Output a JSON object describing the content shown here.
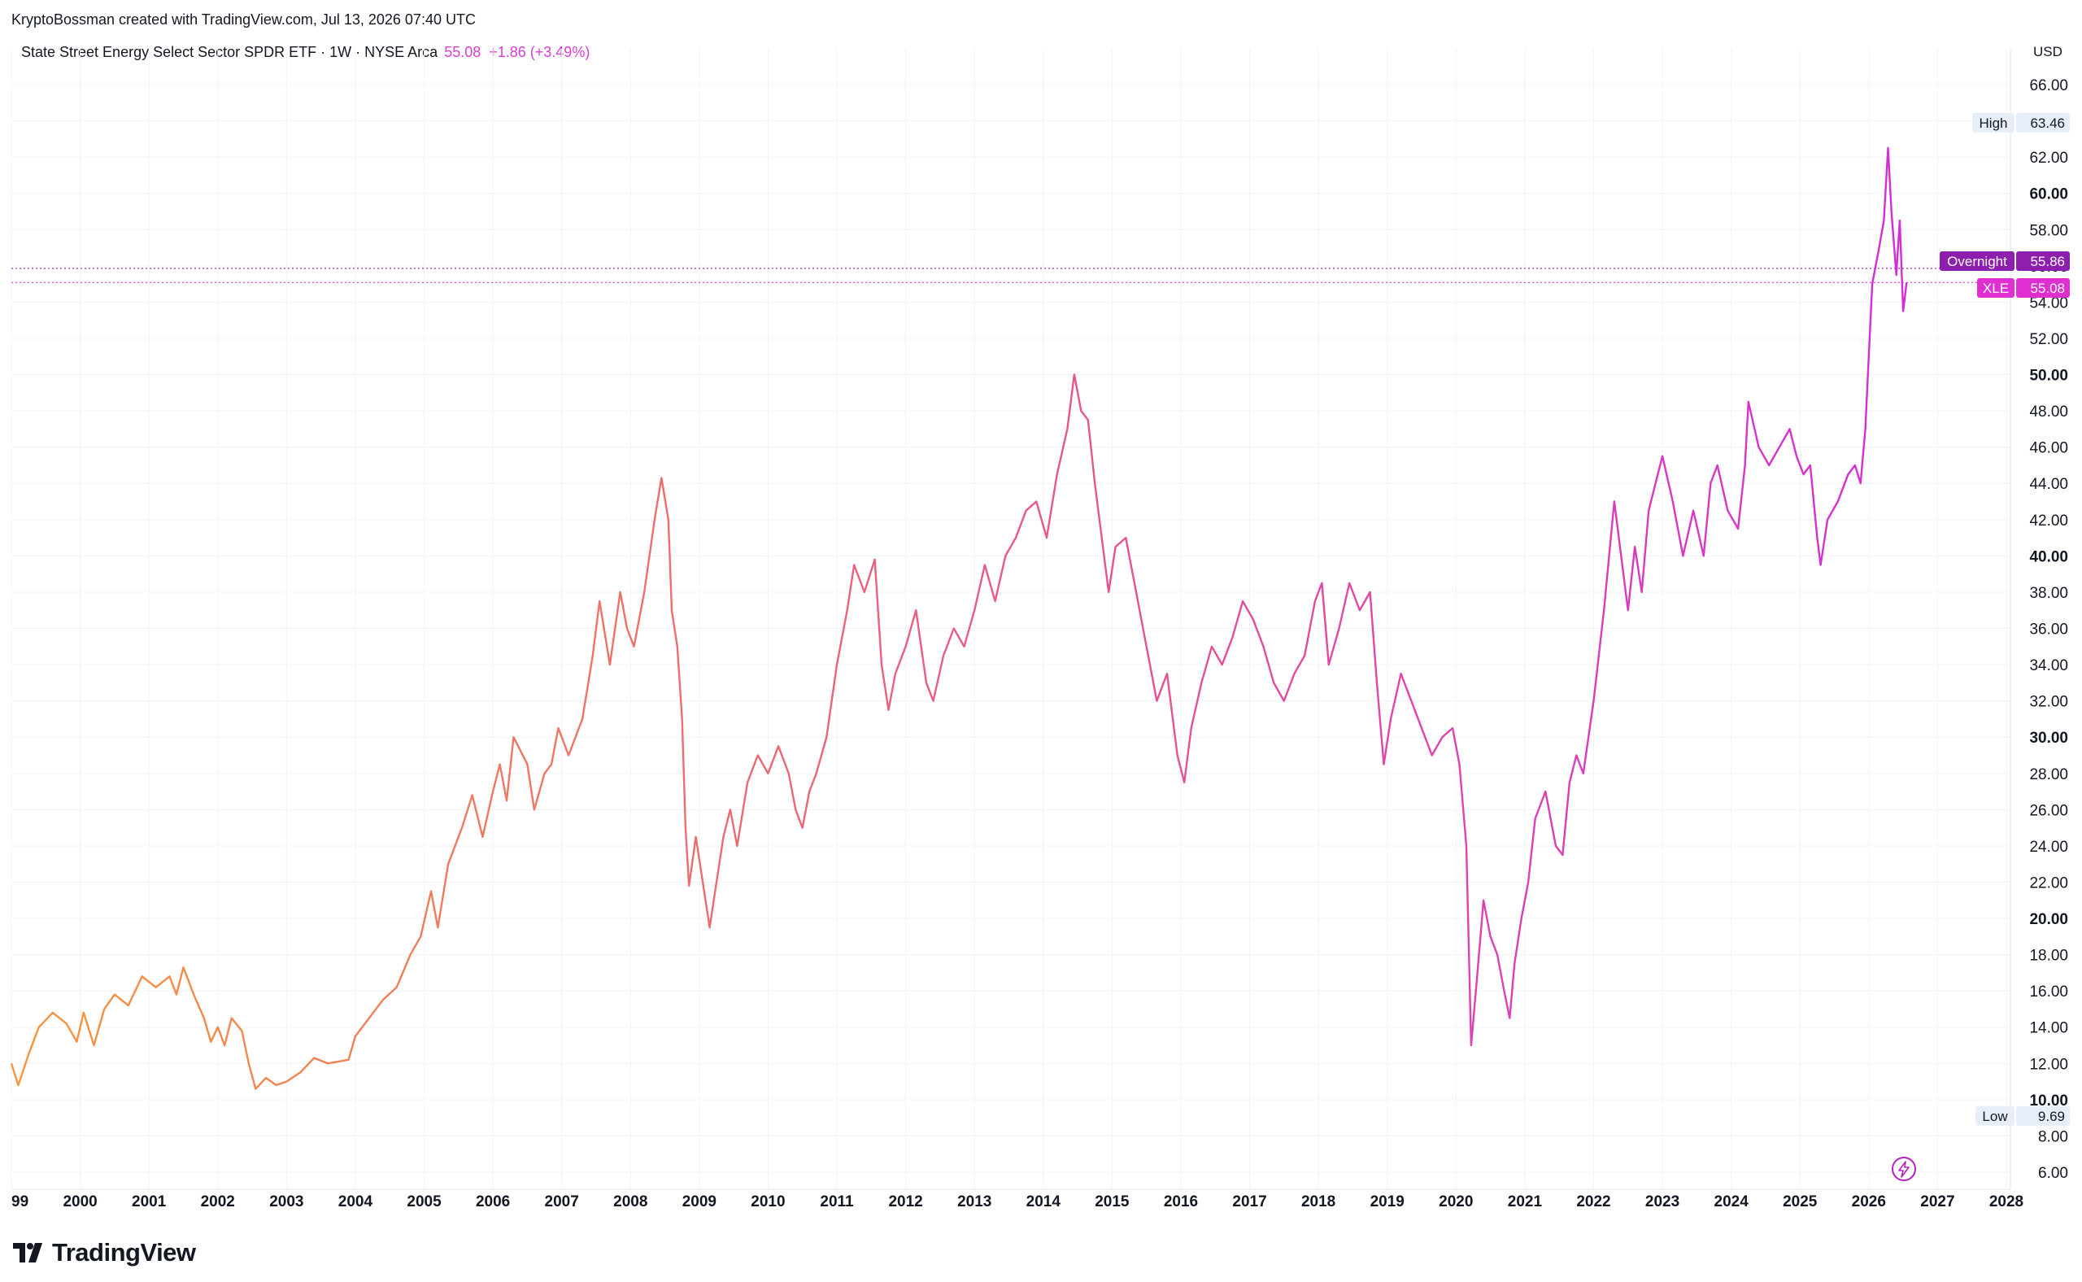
{
  "header": {
    "credit": "KryptoBossman created with TradingView.com, Jul 13, 2026 07:40 UTC",
    "symbol_line": "State Street Energy Select Sector SPDR ETF · 1W · NYSE Arca",
    "last_value": "55.08",
    "change": "+1.86 (+3.49%)",
    "currency": "USD"
  },
  "branding": {
    "logo_text": "TradingView"
  },
  "colors": {
    "line_start": "#f7953b",
    "line_mid": "#e8568a",
    "line_end": "#d62bd8",
    "overnight_tag": "#8e1fae",
    "price_tag": "#e02fd0",
    "hi_lo_tag": "#e7eef8",
    "grid": "#f0f3fa"
  },
  "chart_data": {
    "type": "line",
    "title": "State Street Energy Select Sector SPDR ETF · 1W · NYSE Arca",
    "xlabel": "",
    "ylabel": "",
    "x_range": [
      1999.0,
      2028.0
    ],
    "y_range": [
      5.0,
      67.0
    ],
    "y_ticks": [
      "66.00",
      "64.00",
      "62.00",
      "60.00",
      "58.00",
      "56.00",
      "54.00",
      "52.00",
      "50.00",
      "48.00",
      "46.00",
      "44.00",
      "42.00",
      "40.00",
      "38.00",
      "36.00",
      "34.00",
      "32.00",
      "30.00",
      "28.00",
      "26.00",
      "24.00",
      "22.00",
      "20.00",
      "18.00",
      "16.00",
      "14.00",
      "12.00",
      "10.00",
      "8.00",
      "6.00"
    ],
    "y_ticks_bold": [
      "60.00",
      "50.00",
      "40.00",
      "30.00",
      "20.00",
      "10.00"
    ],
    "x_ticks": [
      "99",
      "2000",
      "2001",
      "2002",
      "2003",
      "2004",
      "2005",
      "2006",
      "2007",
      "2008",
      "2009",
      "2010",
      "2011",
      "2012",
      "2013",
      "2014",
      "2015",
      "2016",
      "2017",
      "2018",
      "2019",
      "2020",
      "2021",
      "2022",
      "2023",
      "2024",
      "2025",
      "2026",
      "2027",
      "2028"
    ],
    "grid": true,
    "series": [
      {
        "name": "XLE",
        "points": [
          [
            1999.0,
            12.0
          ],
          [
            1999.1,
            10.8
          ],
          [
            1999.25,
            12.5
          ],
          [
            1999.4,
            14.0
          ],
          [
            1999.6,
            14.8
          ],
          [
            1999.8,
            14.2
          ],
          [
            1999.95,
            13.2
          ],
          [
            2000.05,
            14.8
          ],
          [
            2000.2,
            13.0
          ],
          [
            2000.35,
            15.0
          ],
          [
            2000.5,
            15.8
          ],
          [
            2000.7,
            15.2
          ],
          [
            2000.9,
            16.8
          ],
          [
            2001.1,
            16.2
          ],
          [
            2001.3,
            16.8
          ],
          [
            2001.4,
            15.8
          ],
          [
            2001.5,
            17.3
          ],
          [
            2001.65,
            15.8
          ],
          [
            2001.8,
            14.5
          ],
          [
            2001.9,
            13.2
          ],
          [
            2002.0,
            14.0
          ],
          [
            2002.1,
            13.0
          ],
          [
            2002.2,
            14.5
          ],
          [
            2002.35,
            13.8
          ],
          [
            2002.45,
            12.0
          ],
          [
            2002.55,
            10.6
          ],
          [
            2002.7,
            11.2
          ],
          [
            2002.85,
            10.8
          ],
          [
            2003.0,
            11.0
          ],
          [
            2003.2,
            11.5
          ],
          [
            2003.4,
            12.3
          ],
          [
            2003.6,
            12.0
          ],
          [
            2003.9,
            12.2
          ],
          [
            2004.0,
            13.5
          ],
          [
            2004.2,
            14.5
          ],
          [
            2004.4,
            15.5
          ],
          [
            2004.6,
            16.2
          ],
          [
            2004.8,
            18.0
          ],
          [
            2004.95,
            19.0
          ],
          [
            2005.1,
            21.5
          ],
          [
            2005.2,
            19.5
          ],
          [
            2005.35,
            23.0
          ],
          [
            2005.55,
            25.0
          ],
          [
            2005.7,
            26.8
          ],
          [
            2005.85,
            24.5
          ],
          [
            2006.0,
            27.0
          ],
          [
            2006.1,
            28.5
          ],
          [
            2006.2,
            26.5
          ],
          [
            2006.3,
            30.0
          ],
          [
            2006.5,
            28.5
          ],
          [
            2006.6,
            26.0
          ],
          [
            2006.75,
            28.0
          ],
          [
            2006.85,
            28.5
          ],
          [
            2006.95,
            30.5
          ],
          [
            2007.1,
            29.0
          ],
          [
            2007.3,
            31.0
          ],
          [
            2007.45,
            34.5
          ],
          [
            2007.55,
            37.5
          ],
          [
            2007.7,
            34.0
          ],
          [
            2007.85,
            38.0
          ],
          [
            2007.95,
            36.0
          ],
          [
            2008.05,
            35.0
          ],
          [
            2008.2,
            38.0
          ],
          [
            2008.35,
            42.0
          ],
          [
            2008.45,
            44.3
          ],
          [
            2008.55,
            42.0
          ],
          [
            2008.6,
            37.0
          ],
          [
            2008.68,
            35.0
          ],
          [
            2008.75,
            31.0
          ],
          [
            2008.8,
            25.0
          ],
          [
            2008.85,
            21.8
          ],
          [
            2008.95,
            24.5
          ],
          [
            2009.05,
            22.0
          ],
          [
            2009.15,
            19.5
          ],
          [
            2009.25,
            22.0
          ],
          [
            2009.35,
            24.5
          ],
          [
            2009.45,
            26.0
          ],
          [
            2009.55,
            24.0
          ],
          [
            2009.7,
            27.5
          ],
          [
            2009.85,
            29.0
          ],
          [
            2010.0,
            28.0
          ],
          [
            2010.15,
            29.5
          ],
          [
            2010.3,
            28.0
          ],
          [
            2010.4,
            26.0
          ],
          [
            2010.5,
            25.0
          ],
          [
            2010.6,
            27.0
          ],
          [
            2010.7,
            28.0
          ],
          [
            2010.85,
            30.0
          ],
          [
            2011.0,
            34.0
          ],
          [
            2011.15,
            37.0
          ],
          [
            2011.25,
            39.5
          ],
          [
            2011.4,
            38.0
          ],
          [
            2011.55,
            39.8
          ],
          [
            2011.65,
            34.0
          ],
          [
            2011.75,
            31.5
          ],
          [
            2011.85,
            33.5
          ],
          [
            2012.0,
            35.0
          ],
          [
            2012.15,
            37.0
          ],
          [
            2012.3,
            33.0
          ],
          [
            2012.4,
            32.0
          ],
          [
            2012.55,
            34.5
          ],
          [
            2012.7,
            36.0
          ],
          [
            2012.85,
            35.0
          ],
          [
            2013.0,
            37.0
          ],
          [
            2013.15,
            39.5
          ],
          [
            2013.3,
            37.5
          ],
          [
            2013.45,
            40.0
          ],
          [
            2013.6,
            41.0
          ],
          [
            2013.75,
            42.5
          ],
          [
            2013.9,
            43.0
          ],
          [
            2014.05,
            41.0
          ],
          [
            2014.2,
            44.5
          ],
          [
            2014.35,
            47.0
          ],
          [
            2014.45,
            50.0
          ],
          [
            2014.55,
            48.0
          ],
          [
            2014.65,
            47.5
          ],
          [
            2014.75,
            44.0
          ],
          [
            2014.85,
            41.0
          ],
          [
            2014.95,
            38.0
          ],
          [
            2015.05,
            40.5
          ],
          [
            2015.2,
            41.0
          ],
          [
            2015.35,
            38.0
          ],
          [
            2015.5,
            35.0
          ],
          [
            2015.65,
            32.0
          ],
          [
            2015.8,
            33.5
          ],
          [
            2015.95,
            29.0
          ],
          [
            2016.05,
            27.5
          ],
          [
            2016.15,
            30.5
          ],
          [
            2016.3,
            33.0
          ],
          [
            2016.45,
            35.0
          ],
          [
            2016.6,
            34.0
          ],
          [
            2016.75,
            35.5
          ],
          [
            2016.9,
            37.5
          ],
          [
            2017.05,
            36.5
          ],
          [
            2017.2,
            35.0
          ],
          [
            2017.35,
            33.0
          ],
          [
            2017.5,
            32.0
          ],
          [
            2017.65,
            33.5
          ],
          [
            2017.8,
            34.5
          ],
          [
            2017.95,
            37.5
          ],
          [
            2018.05,
            38.5
          ],
          [
            2018.15,
            34.0
          ],
          [
            2018.3,
            36.0
          ],
          [
            2018.45,
            38.5
          ],
          [
            2018.6,
            37.0
          ],
          [
            2018.75,
            38.0
          ],
          [
            2018.85,
            33.0
          ],
          [
            2018.95,
            28.5
          ],
          [
            2019.05,
            31.0
          ],
          [
            2019.2,
            33.5
          ],
          [
            2019.35,
            32.0
          ],
          [
            2019.5,
            30.5
          ],
          [
            2019.65,
            29.0
          ],
          [
            2019.8,
            30.0
          ],
          [
            2019.95,
            30.5
          ],
          [
            2020.05,
            28.5
          ],
          [
            2020.15,
            24.0
          ],
          [
            2020.22,
            13.0
          ],
          [
            2020.3,
            16.5
          ],
          [
            2020.4,
            21.0
          ],
          [
            2020.5,
            19.0
          ],
          [
            2020.6,
            18.0
          ],
          [
            2020.7,
            16.0
          ],
          [
            2020.78,
            14.5
          ],
          [
            2020.85,
            17.5
          ],
          [
            2020.95,
            20.0
          ],
          [
            2021.05,
            22.0
          ],
          [
            2021.15,
            25.5
          ],
          [
            2021.3,
            27.0
          ],
          [
            2021.45,
            24.0
          ],
          [
            2021.55,
            23.5
          ],
          [
            2021.65,
            27.5
          ],
          [
            2021.75,
            29.0
          ],
          [
            2021.85,
            28.0
          ],
          [
            2022.0,
            32.0
          ],
          [
            2022.15,
            37.0
          ],
          [
            2022.3,
            43.0
          ],
          [
            2022.4,
            40.0
          ],
          [
            2022.5,
            37.0
          ],
          [
            2022.6,
            40.5
          ],
          [
            2022.7,
            38.0
          ],
          [
            2022.8,
            42.5
          ],
          [
            2022.9,
            44.0
          ],
          [
            2023.0,
            45.5
          ],
          [
            2023.15,
            43.0
          ],
          [
            2023.3,
            40.0
          ],
          [
            2023.45,
            42.5
          ],
          [
            2023.6,
            40.0
          ],
          [
            2023.7,
            44.0
          ],
          [
            2023.8,
            45.0
          ],
          [
            2023.95,
            42.5
          ],
          [
            2024.1,
            41.5
          ],
          [
            2024.2,
            45.0
          ],
          [
            2024.25,
            48.5
          ],
          [
            2024.4,
            46.0
          ],
          [
            2024.55,
            45.0
          ],
          [
            2024.7,
            46.0
          ],
          [
            2024.85,
            47.0
          ],
          [
            2024.95,
            45.5
          ],
          [
            2025.05,
            44.5
          ],
          [
            2025.15,
            45.0
          ],
          [
            2025.25,
            41.0
          ],
          [
            2025.3,
            39.5
          ],
          [
            2025.4,
            42.0
          ],
          [
            2025.55,
            43.0
          ],
          [
            2025.7,
            44.5
          ],
          [
            2025.8,
            45.0
          ],
          [
            2025.88,
            44.0
          ],
          [
            2025.95,
            47.0
          ],
          [
            2026.0,
            51.0
          ],
          [
            2026.05,
            55.0
          ],
          [
            2026.15,
            57.0
          ],
          [
            2026.22,
            58.5
          ],
          [
            2026.28,
            62.5
          ],
          [
            2026.33,
            59.0
          ],
          [
            2026.4,
            55.5
          ],
          [
            2026.45,
            58.5
          ],
          [
            2026.5,
            53.5
          ],
          [
            2026.55,
            55.08
          ]
        ]
      }
    ],
    "high": {
      "label": "High",
      "value": "63.46"
    },
    "low": {
      "label": "Low",
      "value": "9.69"
    },
    "overnight": {
      "label": "Overnight",
      "value": "55.86"
    },
    "last": {
      "label": "XLE",
      "value": "55.08"
    }
  }
}
